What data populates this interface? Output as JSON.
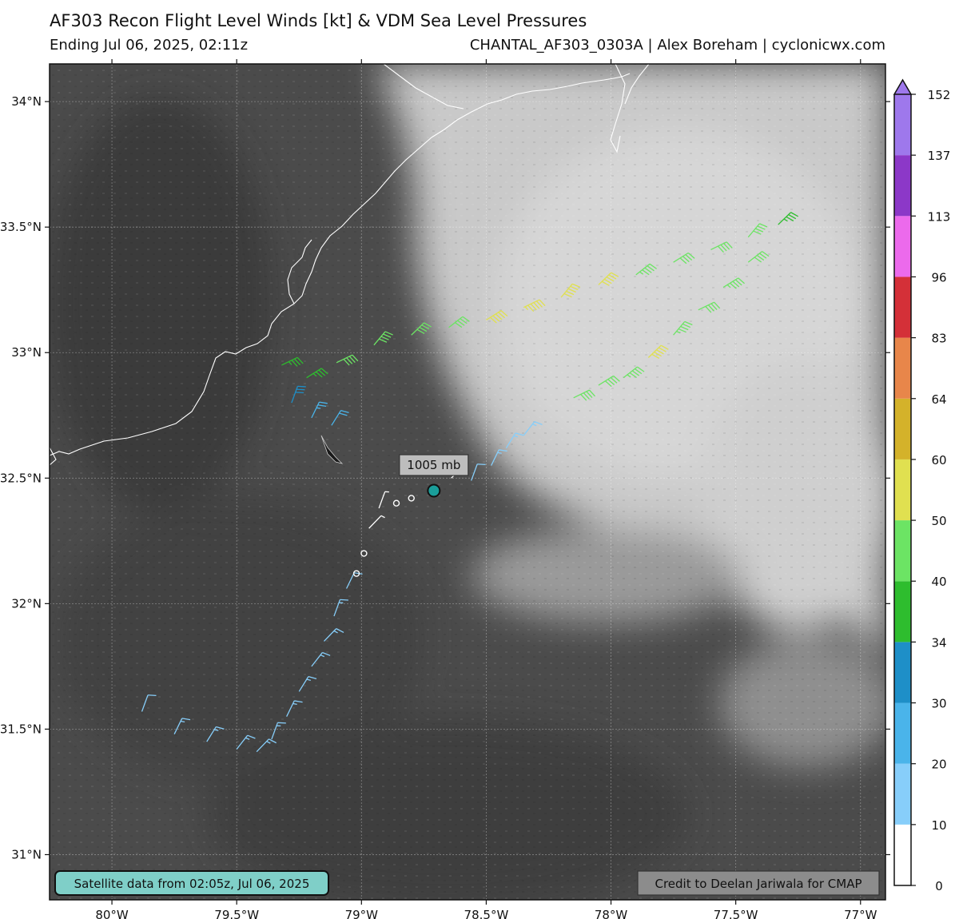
{
  "header": {
    "title": "AF303 Recon Flight Level Winds [kt] & VDM Sea Level Pressures",
    "subtitle_left": "Ending Jul 06, 2025, 02:11z",
    "subtitle_right": "CHANTAL_AF303_0303A | Alex Boreham | cyclonicwx.com"
  },
  "map": {
    "lon_range": [
      -80.25,
      -76.9
    ],
    "lat_range": [
      30.82,
      34.15
    ],
    "lon_ticks": [
      {
        "value": -80.0,
        "label": "80°W"
      },
      {
        "value": -79.5,
        "label": "79.5°W"
      },
      {
        "value": -79.0,
        "label": "79°W"
      },
      {
        "value": -78.5,
        "label": "78.5°W"
      },
      {
        "value": -78.0,
        "label": "78°W"
      },
      {
        "value": -77.5,
        "label": "77.5°W"
      },
      {
        "value": -77.0,
        "label": "77°W"
      }
    ],
    "lat_ticks": [
      {
        "value": 31.0,
        "label": "31°N"
      },
      {
        "value": 31.5,
        "label": "31.5°N"
      },
      {
        "value": 32.0,
        "label": "32°N"
      },
      {
        "value": 32.5,
        "label": "32.5°N"
      },
      {
        "value": 33.0,
        "label": "33°N"
      },
      {
        "value": 33.5,
        "label": "33.5°N"
      },
      {
        "value": 34.0,
        "label": "34°N"
      }
    ],
    "vdm_center": {
      "lon": -78.71,
      "lat": 32.45,
      "pressure_label": "1005 mb"
    },
    "satellite_note": "Satellite data from 02:05z, Jul 06, 2025",
    "credit": "Credit to Deelan Jariwala for CMAP",
    "colors": {
      "background": "#4a4a4a",
      "cloud": "#d2d2d2",
      "coast": "#ffffff",
      "center_fill": "#1a9e9a",
      "note_fill": "#7fcfc8"
    }
  },
  "colorbar": {
    "levels": [
      0,
      10,
      20,
      30,
      34,
      40,
      50,
      60,
      64,
      83,
      96,
      113,
      137,
      152
    ],
    "colors": [
      "#ffffff",
      "#87cefa",
      "#4ab4ea",
      "#1e8fc8",
      "#2ebd2e",
      "#6ce464",
      "#e0e050",
      "#d4b22a",
      "#e8864a",
      "#d43038",
      "#ec6aec",
      "#8c38c8",
      "#9e78ec"
    ],
    "labels": [
      "0",
      "10",
      "20",
      "30",
      "34",
      "40",
      "50",
      "60",
      "64",
      "83",
      "96",
      "113",
      "137",
      "152"
    ]
  },
  "chart_data": {
    "type": "scatter",
    "title": "AF303 Recon Flight Level Winds [kt] & VDM Sea Level Pressures",
    "x_label": "",
    "y_label": "",
    "xlim": [
      -80.25,
      -76.9
    ],
    "ylim": [
      30.82,
      34.15
    ],
    "series": [
      {
        "name": "flight_level_winds_kt",
        "points": [
          [
            -79.88,
            31.57,
            14
          ],
          [
            -79.75,
            31.48,
            16
          ],
          [
            -79.62,
            31.45,
            18
          ],
          [
            -79.5,
            31.42,
            17
          ],
          [
            -79.42,
            31.41,
            19
          ],
          [
            -79.36,
            31.46,
            18
          ],
          [
            -79.3,
            31.55,
            17
          ],
          [
            -79.25,
            31.65,
            16
          ],
          [
            -79.2,
            31.75,
            17
          ],
          [
            -79.15,
            31.85,
            16
          ],
          [
            -79.11,
            31.95,
            15
          ],
          [
            -79.06,
            32.06,
            12
          ],
          [
            -79.02,
            32.12,
            4
          ],
          [
            -78.99,
            32.2,
            3
          ],
          [
            -78.97,
            32.3,
            5
          ],
          [
            -78.93,
            32.38,
            7
          ],
          [
            -78.86,
            32.4,
            3
          ],
          [
            -78.8,
            32.42,
            2
          ],
          [
            -78.72,
            32.45,
            3
          ],
          [
            -78.64,
            32.5,
            6
          ],
          [
            -78.56,
            32.49,
            12
          ],
          [
            -78.48,
            32.55,
            15
          ],
          [
            -78.42,
            32.62,
            17
          ],
          [
            -78.35,
            32.67,
            16
          ],
          [
            -79.32,
            32.95,
            35
          ],
          [
            -79.28,
            32.8,
            30
          ],
          [
            -79.2,
            32.74,
            25
          ],
          [
            -79.12,
            32.71,
            22
          ],
          [
            -79.22,
            32.9,
            38
          ],
          [
            -79.1,
            32.96,
            40
          ],
          [
            -78.95,
            33.03,
            41
          ],
          [
            -78.8,
            33.07,
            40
          ],
          [
            -78.65,
            33.1,
            44
          ],
          [
            -78.5,
            33.13,
            52
          ],
          [
            -78.35,
            33.18,
            55
          ],
          [
            -78.2,
            33.22,
            52
          ],
          [
            -78.05,
            33.27,
            50
          ],
          [
            -77.9,
            33.31,
            48
          ],
          [
            -77.75,
            33.36,
            44
          ],
          [
            -77.6,
            33.41,
            42
          ],
          [
            -77.45,
            33.46,
            40
          ],
          [
            -77.33,
            33.51,
            38
          ],
          [
            -77.45,
            33.36,
            44
          ],
          [
            -77.55,
            33.26,
            46
          ],
          [
            -77.65,
            33.17,
            44
          ],
          [
            -77.75,
            33.07,
            48
          ],
          [
            -77.85,
            32.98,
            52
          ],
          [
            -77.95,
            32.9,
            45
          ],
          [
            -78.05,
            32.87,
            44
          ],
          [
            -78.15,
            32.82,
            42
          ]
        ]
      }
    ]
  }
}
